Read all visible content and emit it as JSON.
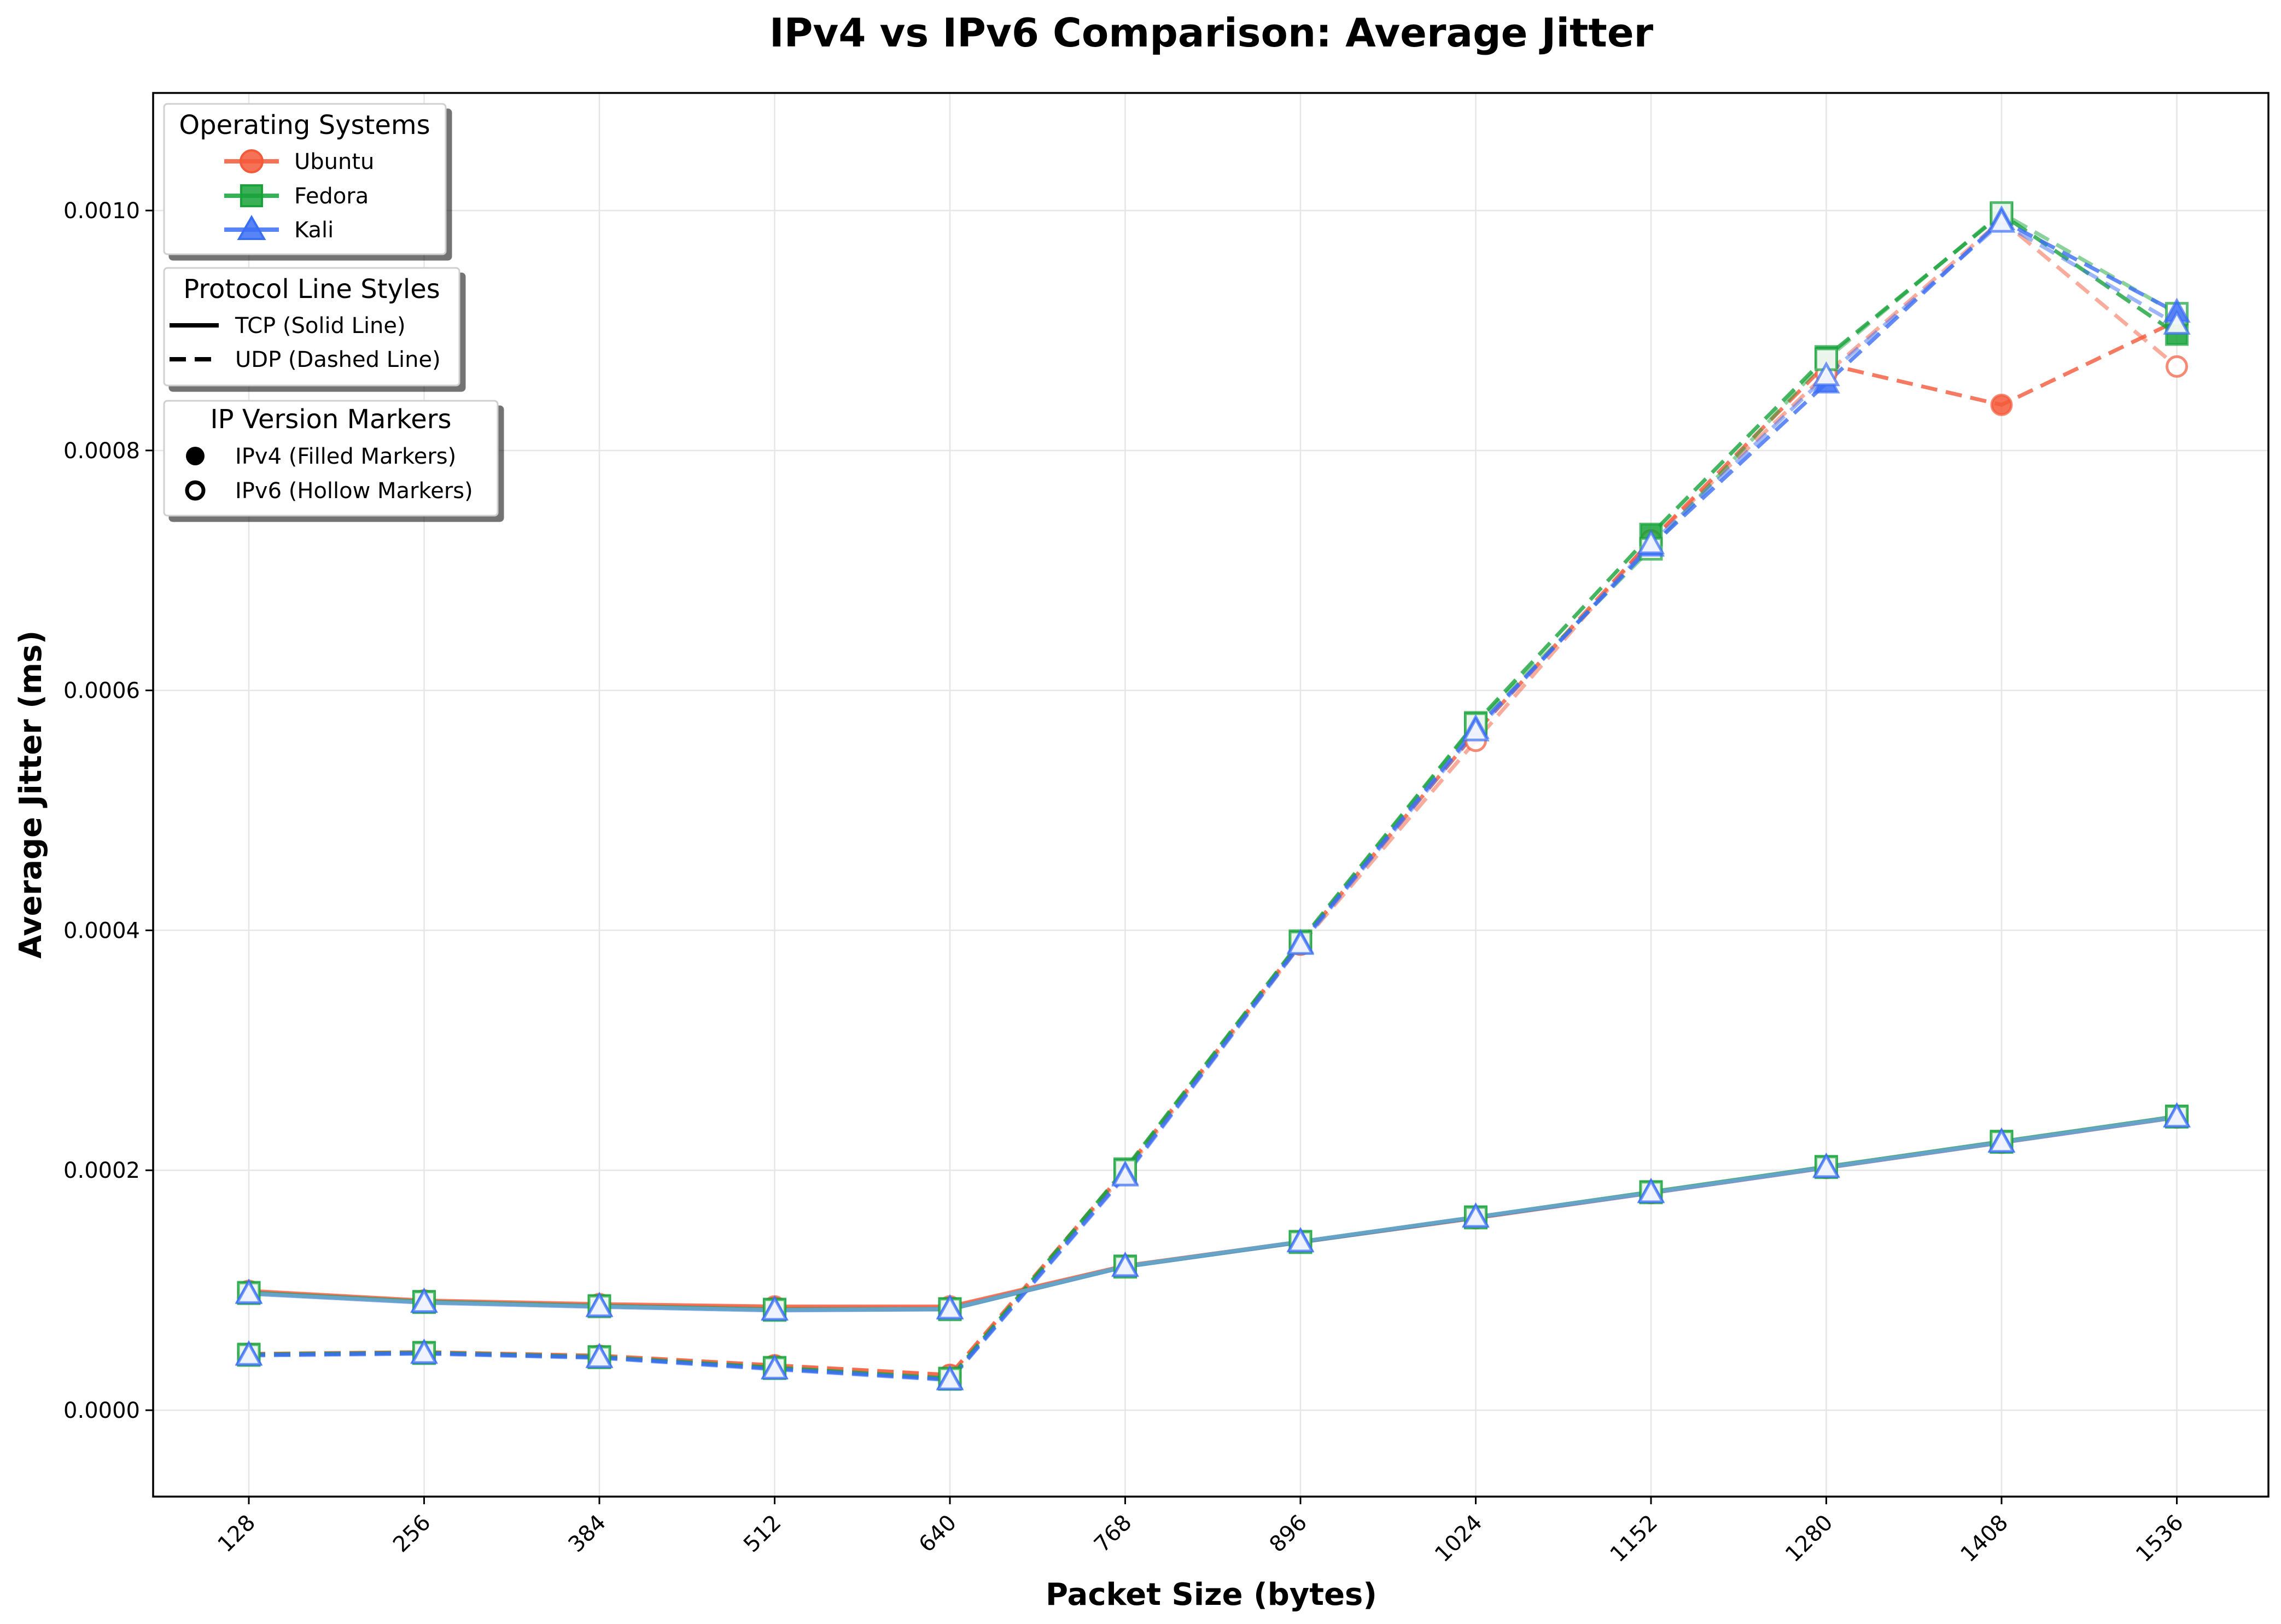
{
  "chart_data": {
    "type": "line",
    "title": "IPv4 vs IPv6 Comparison: Average Jitter",
    "xlabel": "Packet Size (bytes)",
    "ylabel": "Average Jitter (ms)",
    "x": [
      128,
      256,
      384,
      512,
      640,
      768,
      896,
      1024,
      1152,
      1280,
      1408,
      1536
    ],
    "x_tick_labels": [
      "128",
      "256",
      "384",
      "512",
      "640",
      "768",
      "896",
      "1024",
      "1152",
      "1280",
      "1408",
      "1536"
    ],
    "y_ticks": [
      0.0,
      0.0002,
      0.0004,
      0.0006,
      0.0008,
      0.001
    ],
    "y_tick_labels": [
      "0.0000",
      "0.0002",
      "0.0004",
      "0.0006",
      "0.0008",
      "0.0010"
    ],
    "ylim": [
      -7.2e-05,
      0.001098
    ],
    "grid": true,
    "series": [
      {
        "os": "Ubuntu",
        "protocol": "TCP",
        "ip": "IPv4",
        "color": "#f4593a",
        "marker": "circle",
        "filled": true,
        "values": [
          9.95e-05,
          9.15e-05,
          8.85e-05,
          8.65e-05,
          8.65e-05,
          0.0001205,
          0.0001405,
          0.0001605,
          0.0001815,
          0.0002025,
          0.0002235,
          0.0002445
        ]
      },
      {
        "os": "Ubuntu",
        "protocol": "TCP",
        "ip": "IPv6",
        "color": "#f4593a",
        "marker": "circle",
        "filled": false,
        "values": [
          9.85e-05,
          9.05e-05,
          8.75e-05,
          8.55e-05,
          8.55e-05,
          0.00012,
          0.00014,
          0.00016,
          0.000181,
          0.000202,
          0.000223,
          0.000244
        ]
      },
      {
        "os": "Ubuntu",
        "protocol": "UDP",
        "ip": "IPv4",
        "color": "#f4593a",
        "marker": "circle",
        "filled": true,
        "values": [
          4.7e-05,
          4.85e-05,
          4.55e-05,
          3.75e-05,
          2.95e-05,
          0.0002,
          0.00039,
          0.000565,
          0.000725,
          0.000872,
          0.000838,
          0.000908
        ]
      },
      {
        "os": "Ubuntu",
        "protocol": "UDP",
        "ip": "IPv6",
        "color": "#f4593a",
        "marker": "circle",
        "filled": false,
        "values": [
          4.65e-05,
          4.8e-05,
          4.5e-05,
          3.7e-05,
          2.9e-05,
          0.000198,
          0.000388,
          0.000558,
          0.000725,
          0.000864,
          0.000992,
          0.00087
        ]
      },
      {
        "os": "Fedora",
        "protocol": "TCP",
        "ip": "IPv4",
        "color": "#17a33a",
        "marker": "square",
        "filled": true,
        "values": [
          9.8e-05,
          9.05e-05,
          8.7e-05,
          8.4e-05,
          8.45e-05,
          0.00012,
          0.0001405,
          0.000161,
          0.000182,
          0.000203,
          0.000224,
          0.000245
        ]
      },
      {
        "os": "Fedora",
        "protocol": "TCP",
        "ip": "IPv6",
        "color": "#17a33a",
        "marker": "square",
        "filled": false,
        "values": [
          9.75e-05,
          9e-05,
          8.65e-05,
          8.35e-05,
          8.4e-05,
          0.0001195,
          0.00014,
          0.0001605,
          0.0001815,
          0.0002025,
          0.0002235,
          0.0002445
        ]
      },
      {
        "os": "Fedora",
        "protocol": "UDP",
        "ip": "IPv4",
        "color": "#17a33a",
        "marker": "square",
        "filled": true,
        "values": [
          4.65e-05,
          4.8e-05,
          4.45e-05,
          3.55e-05,
          2.65e-05,
          0.000201,
          0.000391,
          0.000573,
          0.00073,
          0.000878,
          0.000997,
          0.000897
        ]
      },
      {
        "os": "Fedora",
        "protocol": "UDP",
        "ip": "IPv6",
        "color": "#17a33a",
        "marker": "square",
        "filled": false,
        "values": [
          4.6e-05,
          4.75e-05,
          4.4e-05,
          3.5e-05,
          2.6e-05,
          0.0002,
          0.00039,
          0.000572,
          0.000718,
          0.000876,
          0.000998,
          0.000914
        ]
      },
      {
        "os": "Kali",
        "protocol": "TCP",
        "ip": "IPv4",
        "color": "#3b6ef5",
        "marker": "triangle",
        "filled": true,
        "values": [
          9.75e-05,
          9e-05,
          8.65e-05,
          8.35e-05,
          8.45e-05,
          0.00012,
          0.0001405,
          0.000161,
          0.0001815,
          0.0002025,
          0.0002235,
          0.0002445
        ]
      },
      {
        "os": "Kali",
        "protocol": "TCP",
        "ip": "IPv6",
        "color": "#3b6ef5",
        "marker": "triangle",
        "filled": false,
        "values": [
          9.7e-05,
          8.95e-05,
          8.6e-05,
          8.3e-05,
          8.4e-05,
          0.0001195,
          0.00014,
          0.0001605,
          0.000181,
          0.000202,
          0.000223,
          0.000244
        ]
      },
      {
        "os": "Kali",
        "protocol": "UDP",
        "ip": "IPv4",
        "color": "#3b6ef5",
        "marker": "triangle",
        "filled": true,
        "values": [
          4.6e-05,
          4.75e-05,
          4.4e-05,
          3.45e-05,
          2.55e-05,
          0.000196,
          0.000389,
          0.000568,
          0.00072,
          0.000856,
          0.000992,
          0.000915
        ]
      },
      {
        "os": "Kali",
        "protocol": "UDP",
        "ip": "IPv6",
        "color": "#3b6ef5",
        "marker": "triangle",
        "filled": false,
        "values": [
          4.55e-05,
          4.7e-05,
          4.35e-05,
          3.4e-05,
          2.5e-05,
          0.000195,
          0.000388,
          0.000566,
          0.000722,
          0.000862,
          0.00099,
          0.000905
        ]
      }
    ],
    "legends": [
      {
        "title": "Operating Systems",
        "placement": "upper-left",
        "entries": [
          {
            "label": "Ubuntu",
            "color": "#f4593a",
            "marker": "circle"
          },
          {
            "label": "Fedora",
            "color": "#17a33a",
            "marker": "square"
          },
          {
            "label": "Kali",
            "color": "#3b6ef5",
            "marker": "triangle"
          }
        ]
      },
      {
        "title": "Protocol Line Styles",
        "entries": [
          {
            "label": "TCP (Solid Line)",
            "style": "solid"
          },
          {
            "label": "UDP (Dashed Line)",
            "style": "dashed"
          }
        ]
      },
      {
        "title": "IP Version Markers",
        "entries": [
          {
            "label": "IPv4 (Filled Markers)",
            "marker": "filled"
          },
          {
            "label": "IPv6 (Hollow Markers)",
            "marker": "hollow"
          }
        ]
      }
    ]
  }
}
